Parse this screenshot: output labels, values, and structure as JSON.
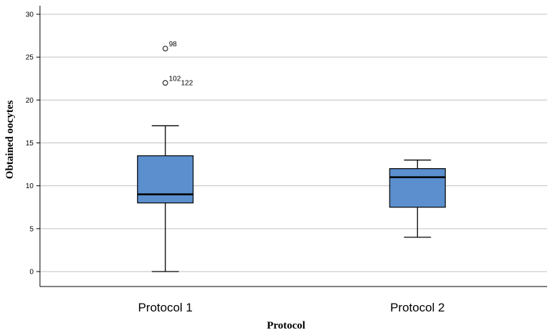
{
  "chart_data": {
    "type": "boxplot",
    "title": "",
    "xlabel": "Protocol",
    "ylabel": "Obtained oocytes",
    "ylim": [
      -1.5,
      31
    ],
    "yticks": [
      0,
      5,
      10,
      15,
      20,
      25,
      30
    ],
    "grid": true,
    "box_color": "#5b8fcd",
    "categories": [
      "Protocol 1",
      "Protocol 2"
    ],
    "boxes": [
      {
        "category": "Protocol 1",
        "whisker_low": 0,
        "q1": 8,
        "median": 9,
        "q3": 13.5,
        "whisker_high": 17,
        "outliers": [
          {
            "value": 26,
            "label": "98"
          },
          {
            "value": 22,
            "label": "102"
          },
          {
            "value": 22,
            "label": "122"
          }
        ]
      },
      {
        "category": "Protocol 2",
        "whisker_low": 4,
        "q1": 7.5,
        "median": 11,
        "q3": 12,
        "whisker_high": 13,
        "outliers": []
      }
    ]
  }
}
